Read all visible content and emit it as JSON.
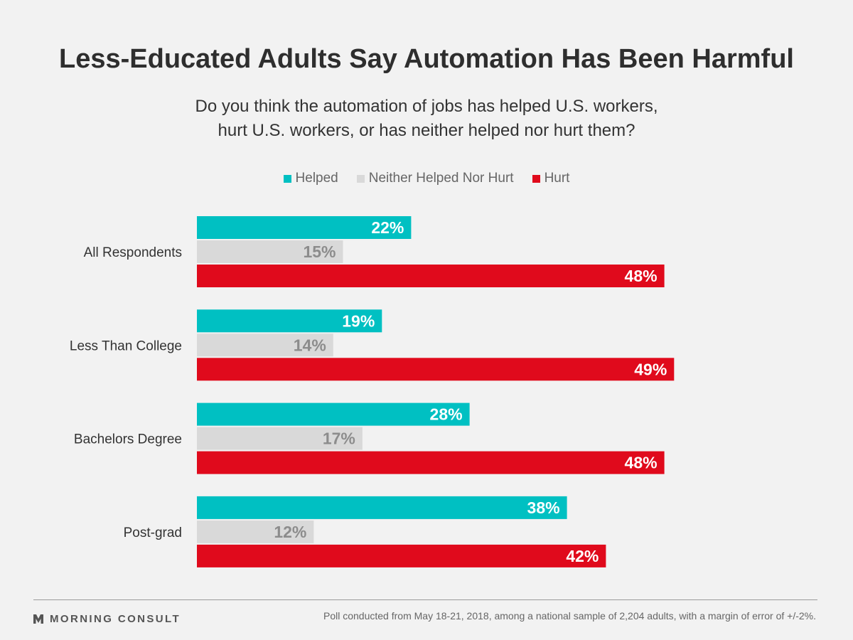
{
  "header": {
    "title": "Less-Educated Adults Say Automation Has Been Harmful",
    "subtitle_line1": "Do you think the automation of jobs has helped U.S. workers,",
    "subtitle_line2": "hurt U.S. workers, or has neither helped nor hurt them?"
  },
  "legend": [
    {
      "label": "Helped",
      "color": "#00c0c2"
    },
    {
      "label": "Neither Helped Nor Hurt",
      "color": "#d9d9d9"
    },
    {
      "label": "Hurt",
      "color": "#e00a1c"
    }
  ],
  "chart_data": {
    "type": "bar",
    "orientation": "horizontal",
    "categories": [
      "All Respondents",
      "Less Than College",
      "Bachelors Degree",
      "Post-grad"
    ],
    "series": [
      {
        "name": "Helped",
        "values": [
          22,
          19,
          28,
          38
        ],
        "color": "#00c0c2",
        "label_color": "#ffffff"
      },
      {
        "name": "Neither Helped Nor Hurt",
        "values": [
          15,
          14,
          17,
          12
        ],
        "color": "#d9d9d9",
        "label_color": "#8c8c8c"
      },
      {
        "name": "Hurt",
        "values": [
          48,
          49,
          48,
          42
        ],
        "color": "#e00a1c",
        "label_color": "#ffffff"
      }
    ],
    "value_suffix": "%",
    "xlim": [
      0,
      50
    ],
    "grid": false,
    "legend_position": "top-center"
  },
  "footer": {
    "brand": "MORNING CONSULT",
    "brand_icon": "morning-consult-logo-icon",
    "note": "Poll conducted from May 18-21, 2018, among a national sample of 2,204 adults, with a margin of error of +/-2%."
  }
}
